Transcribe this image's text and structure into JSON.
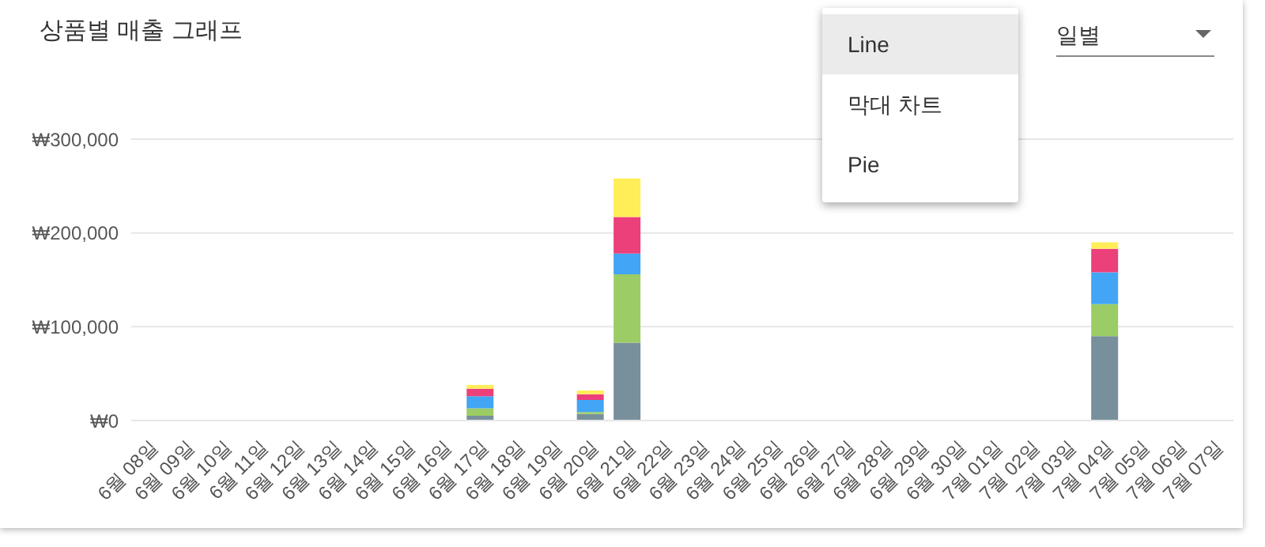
{
  "chart_data": {
    "type": "bar",
    "stacked": true,
    "title": "상품별 매출 그래프",
    "categories": [
      "6월 08일",
      "6월 09일",
      "6월 10일",
      "6월 11일",
      "6월 12일",
      "6월 13일",
      "6월 14일",
      "6월 15일",
      "6월 16일",
      "6월 17일",
      "6월 18일",
      "6월 19일",
      "6월 20일",
      "6월 21일",
      "6월 22일",
      "6월 23일",
      "6월 24일",
      "6월 25일",
      "6월 26일",
      "6월 27일",
      "6월 28일",
      "6월 29일",
      "6월 30일",
      "7월 01일",
      "7월 02일",
      "7월 03일",
      "7월 04일",
      "7월 05일",
      "7월 06일",
      "7월 07일"
    ],
    "series": [
      {
        "color": "#78909c",
        "values": [
          0,
          0,
          0,
          0,
          0,
          0,
          0,
          0,
          0,
          5000,
          0,
          0,
          7000,
          83000,
          0,
          0,
          0,
          0,
          0,
          0,
          0,
          0,
          0,
          0,
          0,
          0,
          90000,
          0,
          0,
          0
        ]
      },
      {
        "color": "#9ccc65",
        "values": [
          0,
          0,
          0,
          0,
          0,
          0,
          0,
          0,
          0,
          8000,
          0,
          0,
          2000,
          73000,
          0,
          0,
          0,
          0,
          0,
          0,
          0,
          0,
          0,
          0,
          0,
          0,
          34000,
          0,
          0,
          0
        ]
      },
      {
        "color": "#42a5f5",
        "values": [
          0,
          0,
          0,
          0,
          0,
          0,
          0,
          0,
          0,
          13000,
          0,
          0,
          13000,
          22000,
          0,
          0,
          0,
          0,
          0,
          0,
          0,
          0,
          0,
          0,
          0,
          0,
          34000,
          0,
          0,
          0
        ]
      },
      {
        "color": "#ec407a",
        "values": [
          0,
          0,
          0,
          0,
          0,
          0,
          0,
          0,
          0,
          8000,
          0,
          0,
          6000,
          39000,
          0,
          0,
          0,
          0,
          0,
          0,
          0,
          0,
          0,
          0,
          0,
          0,
          25000,
          0,
          0,
          0
        ]
      },
      {
        "color": "#ffee58",
        "values": [
          0,
          0,
          0,
          0,
          0,
          0,
          0,
          0,
          0,
          4000,
          0,
          0,
          4000,
          41000,
          0,
          0,
          0,
          0,
          0,
          0,
          0,
          0,
          0,
          0,
          0,
          0,
          7000,
          0,
          0,
          0
        ]
      }
    ],
    "ylim": [
      0,
      300000
    ],
    "yticks": [
      {
        "value": 0,
        "label": "₩0"
      },
      {
        "value": 100000,
        "label": "₩100,000"
      },
      {
        "value": 200000,
        "label": "₩200,000"
      },
      {
        "value": 300000,
        "label": "₩300,000"
      }
    ],
    "grid": "y",
    "legend": false,
    "annotations": [
      "Line",
      "막대 차트",
      "Pie",
      "일별"
    ]
  }
}
